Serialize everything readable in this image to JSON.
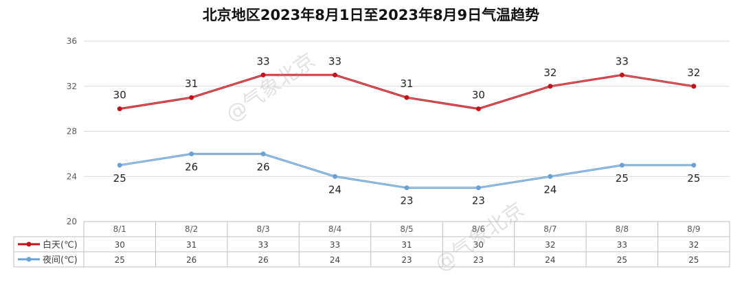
{
  "chart_data": {
    "type": "line",
    "title": "北京地区2023年8月1日至2023年8月9日气温趋势",
    "categories": [
      "8/1",
      "8/2",
      "8/3",
      "8/4",
      "8/5",
      "8/6",
      "8/7",
      "8/8",
      "8/9"
    ],
    "series": [
      {
        "name": "白天(℃)",
        "color": "#c0141c",
        "values": [
          30,
          31,
          33,
          33,
          31,
          30,
          32,
          33,
          32
        ]
      },
      {
        "name": "夜间(℃)",
        "color": "#6aa1d4",
        "values": [
          25,
          26,
          26,
          24,
          23,
          23,
          24,
          25,
          25
        ]
      }
    ],
    "yticks": [
      "20",
      "24",
      "28",
      "32",
      "36"
    ],
    "ylim": [
      20,
      36
    ],
    "grid": true,
    "legend": "data-table-left",
    "data_table": true
  },
  "watermark": {
    "text": "@气象北京"
  }
}
